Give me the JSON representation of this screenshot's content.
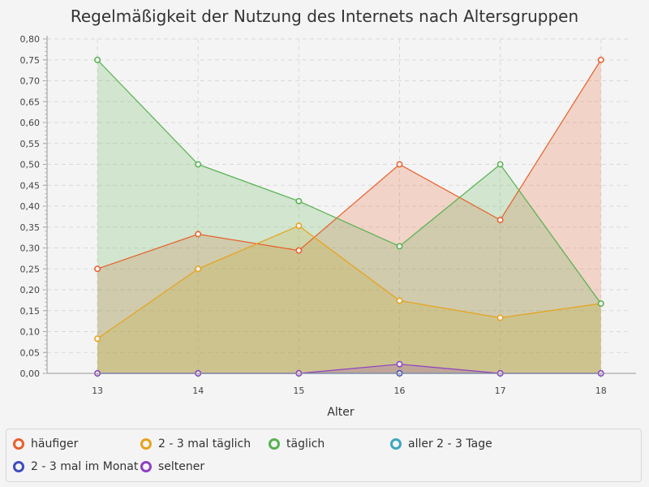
{
  "chart_data": {
    "type": "area",
    "title": "Regelmäßigkeit der Nutzung des Internets nach Altersgruppen",
    "xlabel": "Alter",
    "ylabel": "",
    "x": [
      13,
      14,
      15,
      16,
      17,
      18
    ],
    "x_tick_labels": [
      "13",
      "14",
      "15",
      "16",
      "17",
      "18"
    ],
    "ylim": [
      0,
      0.8
    ],
    "y_ticks": [
      0,
      0.05,
      0.1,
      0.15,
      0.2,
      0.25,
      0.3,
      0.35,
      0.4,
      0.45,
      0.5,
      0.55,
      0.6,
      0.65,
      0.7,
      0.75,
      0.8
    ],
    "y_tick_labels": [
      "0,00",
      "0,05",
      "0,10",
      "0,15",
      "0,20",
      "0,25",
      "0,30",
      "0,35",
      "0,40",
      "0,45",
      "0,50",
      "0,55",
      "0,60",
      "0,65",
      "0,70",
      "0,75",
      "0,80"
    ],
    "grid": true,
    "legend_position": "bottom",
    "series": [
      {
        "name": "häufiger",
        "color": "#e8602a",
        "values": [
          0.25,
          0.333,
          0.294,
          0.5,
          0.367,
          0.75
        ]
      },
      {
        "name": "2 - 3 mal täglich",
        "color": "#e8a21a",
        "values": [
          0.083,
          0.25,
          0.353,
          0.174,
          0.133,
          0.167
        ]
      },
      {
        "name": "täglich",
        "color": "#56b14f",
        "values": [
          0.75,
          0.5,
          0.412,
          0.304,
          0.5,
          0.167
        ]
      },
      {
        "name": "aller 2 - 3 Tage",
        "color": "#3ea6c1",
        "values": [
          0,
          0,
          0,
          0,
          0,
          0
        ]
      },
      {
        "name": "2 - 3 mal im Monat",
        "color": "#3f4bbf",
        "values": [
          0,
          0,
          0,
          0,
          0,
          0
        ]
      },
      {
        "name": "seltener",
        "color": "#8f3fc4",
        "values": [
          0,
          0,
          0,
          0.022,
          0,
          0
        ]
      }
    ]
  }
}
